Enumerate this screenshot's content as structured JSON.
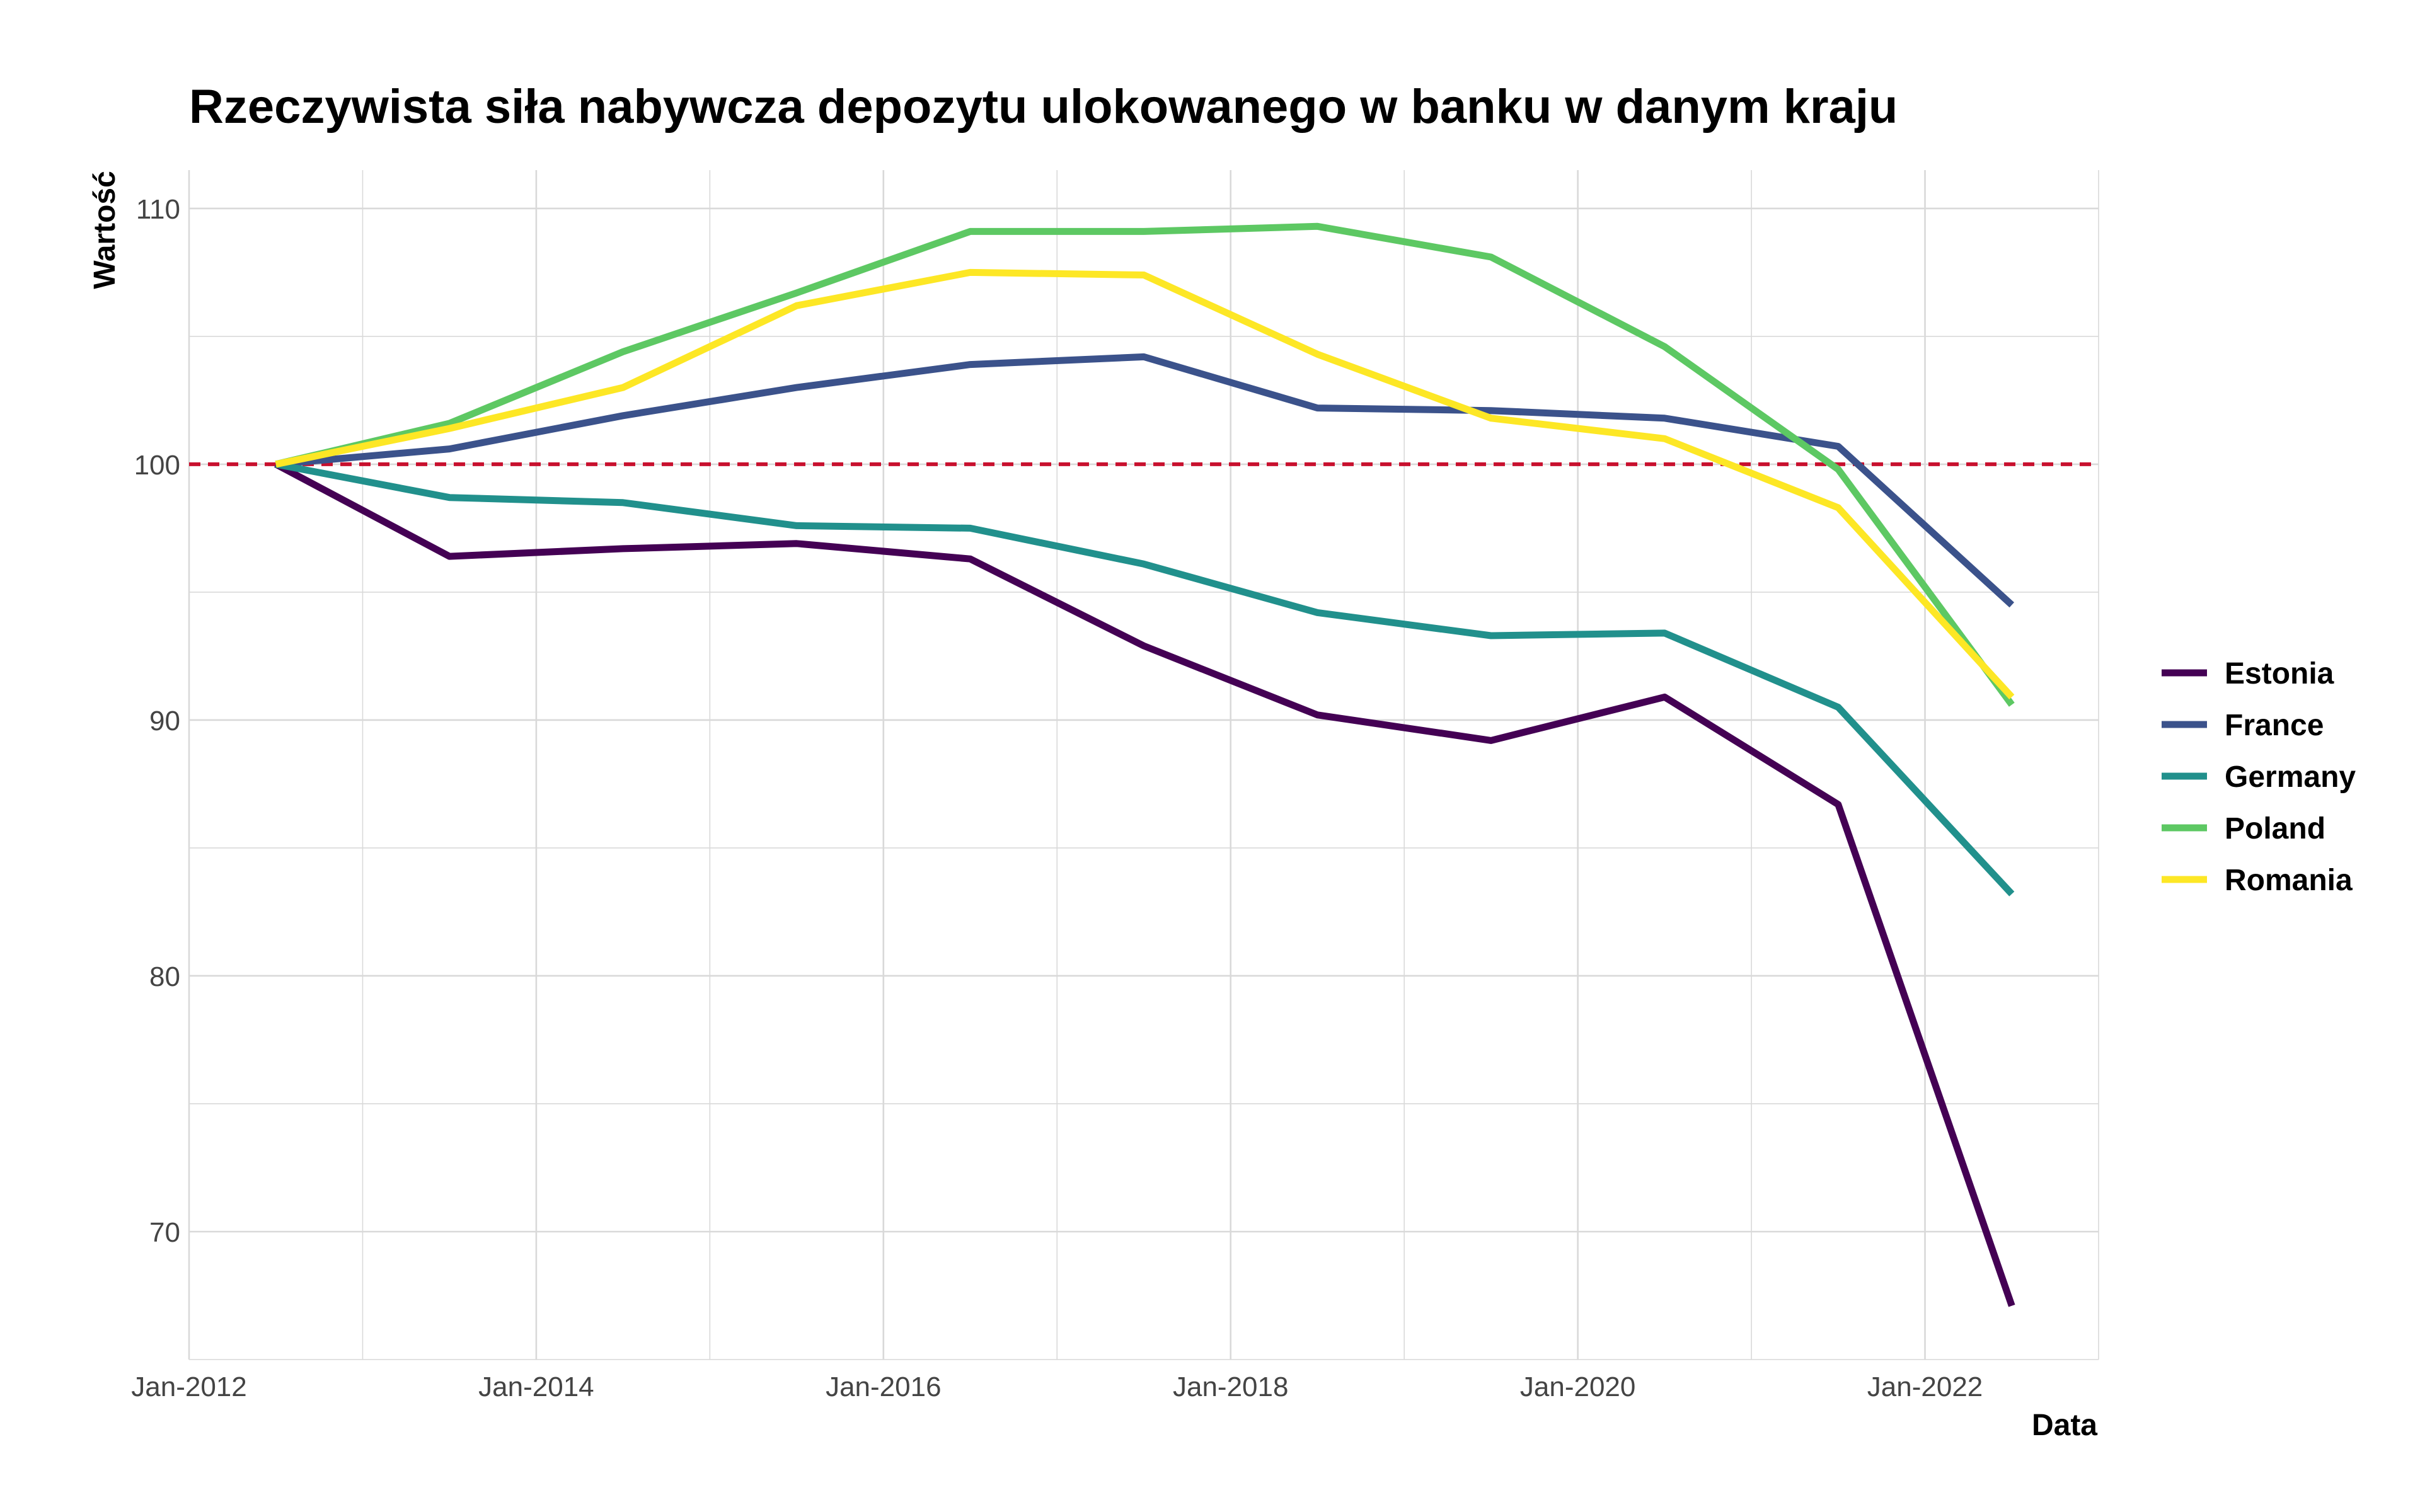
{
  "chart_data": {
    "type": "line",
    "title": "Rzeczywista siła nabywcza depozytu ulokowanego w banku w danym kraju",
    "xlabel": "Data",
    "ylabel": "Wartość",
    "x": [
      "2012-07",
      "2013-07",
      "2014-07",
      "2015-07",
      "2016-07",
      "2017-07",
      "2018-07",
      "2019-07",
      "2020-07",
      "2021-07",
      "2022-07"
    ],
    "xlim": [
      "2012-01",
      "2023-01"
    ],
    "ylim": [
      65,
      111.5
    ],
    "xticks": [
      "Jan-2012",
      "Jan-2014",
      "Jan-2016",
      "Jan-2018",
      "Jan-2020",
      "Jan-2022"
    ],
    "yticks": [
      70,
      80,
      90,
      100,
      110
    ],
    "grid": true,
    "legend_position": "right",
    "reference_line": {
      "y": 100,
      "style": "dashed",
      "color": "#C8102E"
    },
    "series": [
      {
        "name": "Estonia",
        "color": "#440154",
        "values": [
          100,
          96.4,
          96.7,
          96.9,
          96.3,
          92.9,
          90.2,
          89.2,
          90.9,
          86.7,
          67.1
        ]
      },
      {
        "name": "France",
        "color": "#3B528B",
        "values": [
          100,
          100.6,
          101.9,
          103.0,
          103.9,
          104.2,
          102.2,
          102.1,
          101.8,
          100.7,
          94.5
        ]
      },
      {
        "name": "Germany",
        "color": "#21908C",
        "values": [
          100,
          98.7,
          98.5,
          97.6,
          97.5,
          96.1,
          94.2,
          93.3,
          93.4,
          90.5,
          83.2
        ]
      },
      {
        "name": "Poland",
        "color": "#5DC863",
        "values": [
          100,
          101.6,
          104.4,
          106.7,
          109.1,
          109.1,
          109.3,
          108.1,
          104.6,
          99.8,
          90.6
        ]
      },
      {
        "name": "Romania",
        "color": "#FDE725",
        "values": [
          100,
          101.4,
          103.0,
          106.2,
          107.5,
          107.4,
          104.3,
          101.8,
          101.0,
          98.3,
          90.9
        ]
      }
    ]
  }
}
